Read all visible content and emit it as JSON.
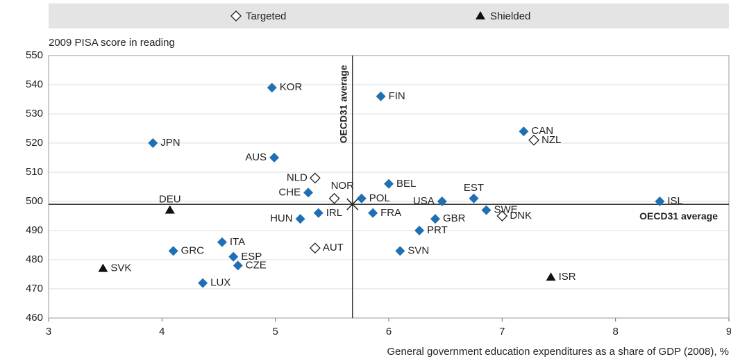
{
  "chart_data": {
    "type": "scatter",
    "y_label": "2009 PISA score in reading",
    "x_label": "General government education expenditures as a share of GDP (2008), %",
    "xlim": [
      3,
      9
    ],
    "xticks": [
      3,
      4,
      5,
      6,
      7,
      8,
      9
    ],
    "ylim": [
      460,
      550
    ],
    "yticks": [
      460,
      470,
      480,
      490,
      500,
      510,
      520,
      530,
      540,
      550
    ],
    "grid": true,
    "x_reference": {
      "value": 5.68,
      "label": "OECD31 average"
    },
    "y_reference": {
      "value": 499,
      "label": "OECD31 average"
    },
    "series": [
      {
        "marker": "diamond",
        "color": "#1f6fb5",
        "labels": [
          "KOR",
          "FIN",
          "JPN",
          "AUS",
          "CHE",
          "BEL",
          "POL",
          "USA",
          "EST",
          "SWE",
          "CAN",
          "ISL",
          "HUN",
          "IRL",
          "FRA",
          "GBR",
          "PRT",
          "SVN",
          "ITA",
          "GRC",
          "ESP",
          "CZE",
          "LUX"
        ],
        "x": [
          4.97,
          5.93,
          3.92,
          4.99,
          5.29,
          6.0,
          5.76,
          6.47,
          6.75,
          6.86,
          7.19,
          8.39,
          5.22,
          5.38,
          5.86,
          6.41,
          6.27,
          6.1,
          4.53,
          4.1,
          4.63,
          4.67,
          4.36
        ],
        "values": [
          539,
          536,
          520,
          515,
          503,
          506,
          501,
          500,
          501,
          497,
          524,
          500,
          494,
          496,
          496,
          494,
          490,
          483,
          486,
          483,
          481,
          478,
          472
        ]
      },
      {
        "name": "Targeted",
        "marker": "diamond-open",
        "color": "#222222",
        "labels": [
          "NLD",
          "NOR",
          "NZL",
          "DNK",
          "AUT"
        ],
        "x": [
          5.35,
          5.52,
          7.28,
          7.0,
          5.35
        ],
        "values": [
          508,
          501,
          521,
          495,
          484
        ]
      },
      {
        "name": "Shielded",
        "marker": "triangle",
        "color": "#111111",
        "labels": [
          "DEU",
          "SVK",
          "ISR"
        ],
        "x": [
          4.07,
          3.48,
          7.43
        ],
        "values": [
          497,
          477,
          474
        ]
      }
    ]
  }
}
